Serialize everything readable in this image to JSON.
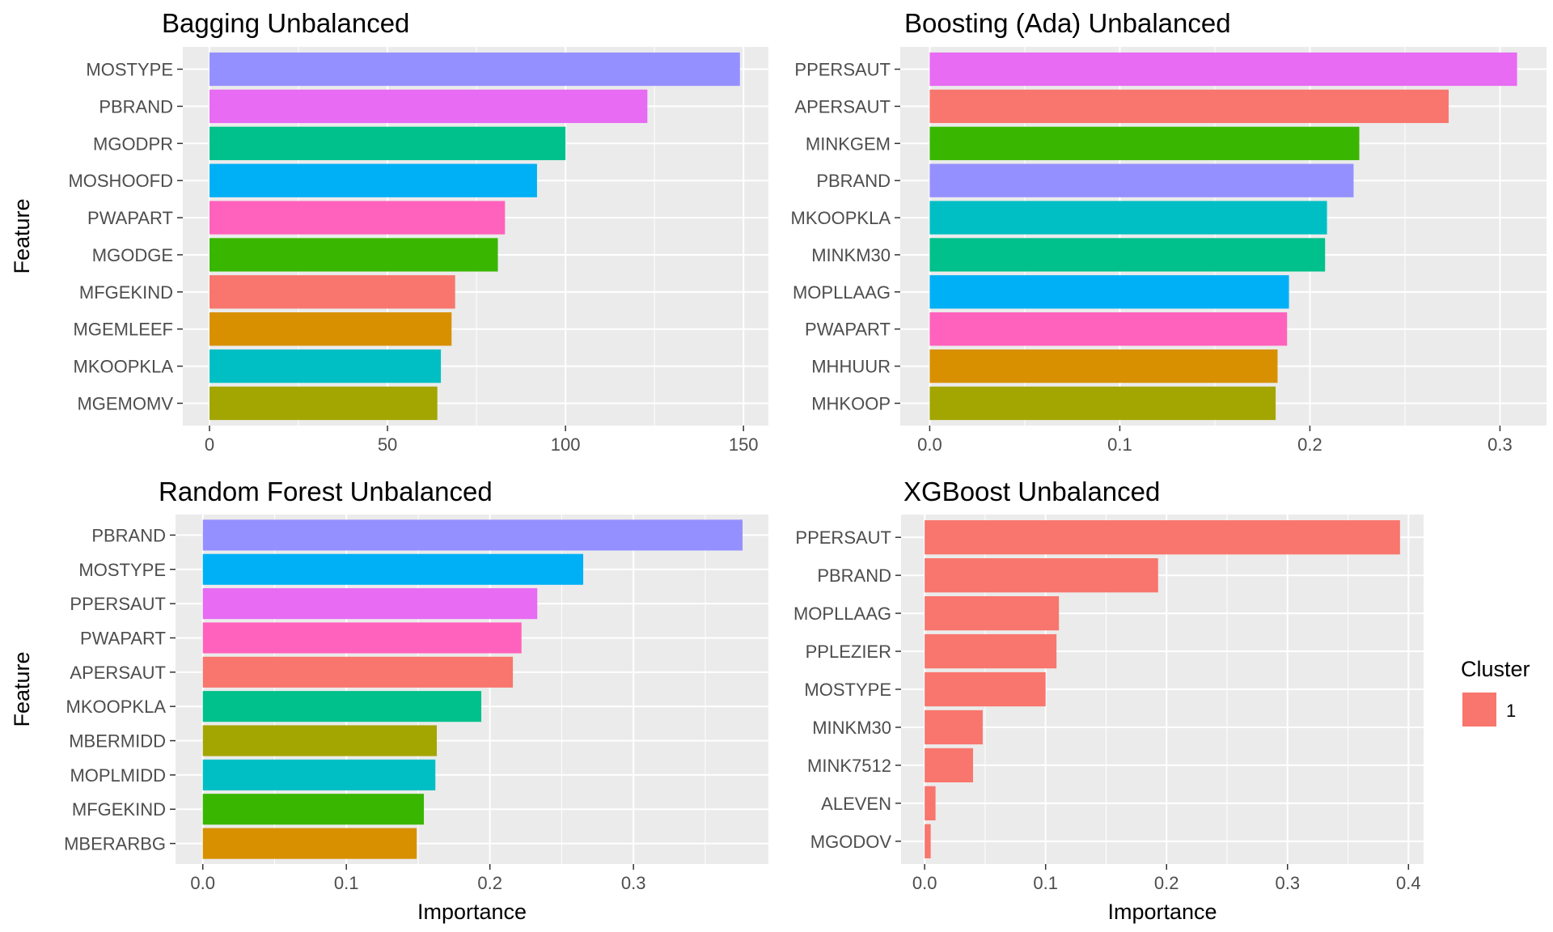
{
  "chart_data": [
    {
      "type": "bar",
      "orientation": "horizontal",
      "title": "Bagging Unbalanced",
      "ylabel": "Feature",
      "xlabel": "",
      "xlim": [
        -7.5,
        157
      ],
      "xticks": [
        0,
        50,
        100,
        150
      ],
      "grid": true,
      "categories": [
        "MOSTYPE",
        "PBRAND",
        "MGODPR",
        "MOSHOOFD",
        "PWAPART",
        "MGODGE",
        "MFGEKIND",
        "MGEMLEEF",
        "MKOOPKLA",
        "MGEMOMV"
      ],
      "values": [
        149,
        123,
        100,
        92,
        83,
        81,
        69,
        68,
        65,
        64
      ],
      "colors": [
        "#9590FF",
        "#E76BF3",
        "#00C08B",
        "#00B0F6",
        "#FF62BC",
        "#39B600",
        "#F8766D",
        "#D89000",
        "#00BFC4",
        "#A3A500"
      ]
    },
    {
      "type": "bar",
      "orientation": "horizontal",
      "title": "Boosting (Ada) Unbalanced",
      "ylabel": "",
      "xlabel": "",
      "xlim": [
        -0.0155,
        0.3245
      ],
      "xticks": [
        0.0,
        0.1,
        0.2,
        0.3
      ],
      "xtick_labels": [
        "0.0",
        "0.1",
        "0.2",
        "0.3"
      ],
      "grid": true,
      "categories": [
        "PPERSAUT",
        "APERSAUT",
        "MINKGEM",
        "PBRAND",
        "MKOOPKLA",
        "MINKM30",
        "MOPLLAAG",
        "PWAPART",
        "MHHUUR",
        "MHKOOP"
      ],
      "values": [
        0.309,
        0.273,
        0.226,
        0.223,
        0.209,
        0.208,
        0.189,
        0.188,
        0.183,
        0.182
      ],
      "colors": [
        "#E76BF3",
        "#F8766D",
        "#39B600",
        "#9590FF",
        "#00BFC4",
        "#00C08B",
        "#00B0F6",
        "#FF62BC",
        "#D89000",
        "#A3A500"
      ]
    },
    {
      "type": "bar",
      "orientation": "horizontal",
      "title": "Random Forest Unbalanced",
      "ylabel": "Feature",
      "xlabel": "Importance",
      "xlim": [
        -0.019,
        0.394
      ],
      "xticks": [
        0.0,
        0.1,
        0.2,
        0.3
      ],
      "xtick_labels": [
        "0.0",
        "0.1",
        "0.2",
        "0.3"
      ],
      "grid": true,
      "categories": [
        "PBRAND",
        "MOSTYPE",
        "PPERSAUT",
        "PWAPART",
        "APERSAUT",
        "MKOOPKLA",
        "MBERMIDD",
        "MOPLMIDD",
        "MFGEKIND",
        "MBERARBG"
      ],
      "values": [
        0.376,
        0.265,
        0.233,
        0.222,
        0.216,
        0.194,
        0.163,
        0.162,
        0.154,
        0.149
      ],
      "colors": [
        "#9590FF",
        "#00B0F6",
        "#E76BF3",
        "#FF62BC",
        "#F8766D",
        "#00C08B",
        "#A3A500",
        "#00BFC4",
        "#39B600",
        "#D89000"
      ]
    },
    {
      "type": "bar",
      "orientation": "horizontal",
      "title": "XGBoost Unbalanced",
      "ylabel": "",
      "xlabel": "Importance",
      "xlim": [
        -0.0195,
        0.4125
      ],
      "xticks": [
        0.0,
        0.1,
        0.2,
        0.3,
        0.4
      ],
      "xtick_labels": [
        "0.0",
        "0.1",
        "0.2",
        "0.3",
        "0.4"
      ],
      "grid": true,
      "categories": [
        "PPERSAUT",
        "PBRAND",
        "MOPLLAAG",
        "PPLEZIER",
        "MOSTYPE",
        "MINKM30",
        "MINK7512",
        "ALEVEN",
        "MGODOV"
      ],
      "values": [
        0.393,
        0.193,
        0.111,
        0.109,
        0.1,
        0.048,
        0.04,
        0.009,
        0.005
      ],
      "colors": [
        "#F8766D",
        "#F8766D",
        "#F8766D",
        "#F8766D",
        "#F8766D",
        "#F8766D",
        "#F8766D",
        "#F8766D",
        "#F8766D"
      ],
      "legend": {
        "title": "Cluster",
        "placement": "right",
        "entries": [
          {
            "label": "1",
            "color": "#F8766D"
          }
        ]
      }
    }
  ]
}
